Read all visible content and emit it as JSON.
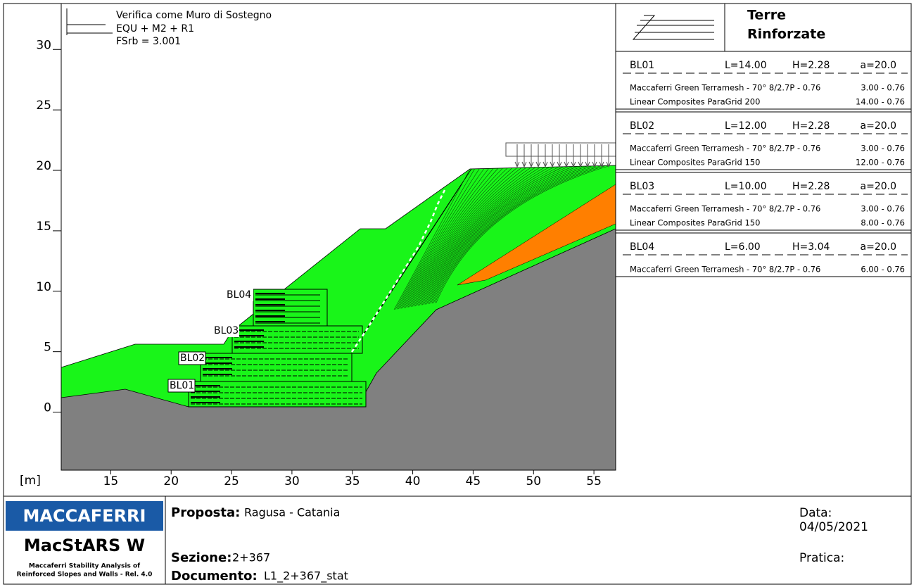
{
  "axes": {
    "unit": "[m]",
    "xlim": [
      10.9,
      56.8
    ],
    "ylim": [
      -4.8,
      33.8
    ],
    "xticks": [
      15,
      20,
      25,
      30,
      35,
      40,
      45,
      50,
      55
    ],
    "yticks": [
      0,
      5,
      10,
      15,
      20,
      25,
      30
    ]
  },
  "legend": {
    "lines": [
      "Verifica come Muro di Sostegno",
      "EQU + M2 + R1",
      "FSrb = 3.001"
    ]
  },
  "panel": {
    "title_1": "Terre",
    "title_2": "Rinforzate",
    "blocks": [
      {
        "name": "BL01",
        "L": "L=14.00",
        "H": "H=2.28",
        "a": "a=20.0",
        "materials": [
          [
            "Maccaferri Green Terramesh - 70° 8/2.7P - 0.76",
            "3.00 - 0.76"
          ],
          [
            "Linear Composites ParaGrid 200",
            "14.00 - 0.76"
          ]
        ]
      },
      {
        "name": "BL02",
        "L": "L=12.00",
        "H": "H=2.28",
        "a": "a=20.0",
        "materials": [
          [
            "Maccaferri Green Terramesh - 70° 8/2.7P - 0.76",
            "3.00 - 0.76"
          ],
          [
            "Linear Composites ParaGrid 150",
            "12.00 - 0.76"
          ]
        ]
      },
      {
        "name": "BL03",
        "L": "L=10.00",
        "H": "H=2.28",
        "a": "a=20.0",
        "materials": [
          [
            "Maccaferri Green Terramesh - 70° 8/2.7P - 0.76",
            "3.00 - 0.76"
          ],
          [
            "Linear Composites ParaGrid 150",
            "8.00 - 0.76"
          ]
        ]
      },
      {
        "name": "BL04",
        "L": "L=6.00",
        "H": "H=3.04",
        "a": "a=20.0",
        "materials": [
          [
            "Maccaferri Green Terramesh - 70° 8/2.7P - 0.76",
            "6.00 - 0.76"
          ]
        ]
      }
    ]
  },
  "footer": {
    "logo": "MACCAFERRI",
    "product": "MacStARS W",
    "product_sub_1": "Maccaferri Stability Analysis of",
    "product_sub_2": "Reinforced Slopes and Walls - Rel. 4.0",
    "proposta_label": "Proposta:",
    "proposta": "Ragusa - Catania",
    "sezione_label": "Sezione:",
    "sezione": "2+367",
    "documento_label": "Documento:",
    "documento": "L1_2+367_stat",
    "data_label": "Data:",
    "data": "04/05/2021",
    "pratica_label": "Pratica:"
  }
}
